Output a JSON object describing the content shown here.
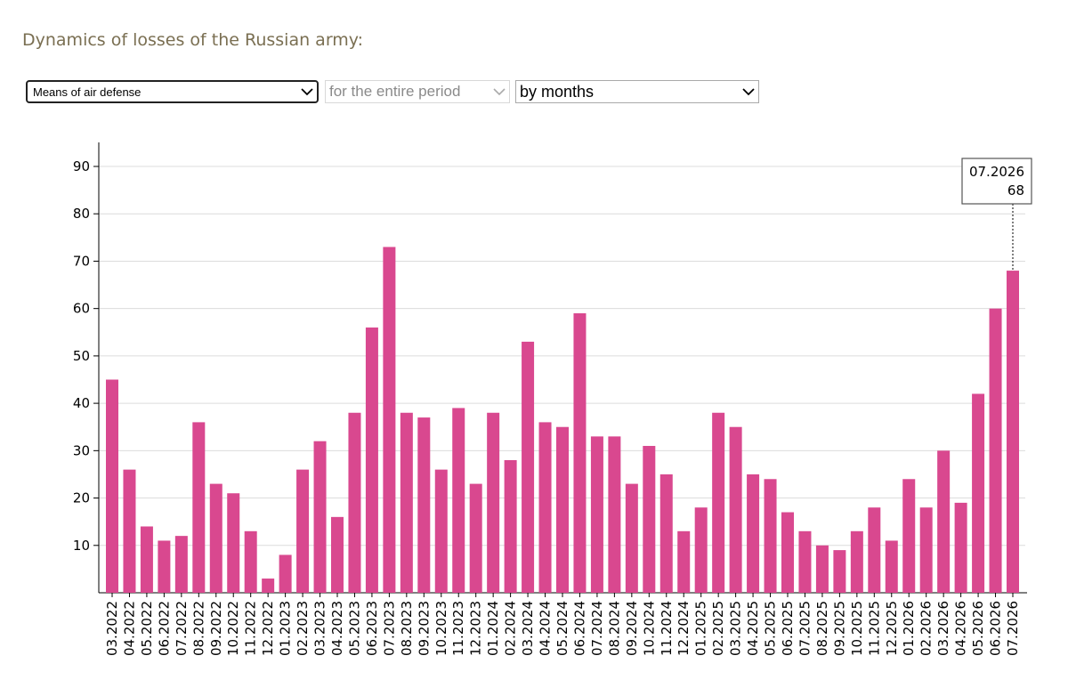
{
  "page": {
    "title": "Dynamics of losses of the Russian army:"
  },
  "filters": {
    "category": {
      "value": "Means of air defense",
      "icon": "chevron-down-icon"
    },
    "period": {
      "value": "for the entire period",
      "icon": "chevron-down-icon"
    },
    "granularity": {
      "value": "by months",
      "icon": "chevron-down-icon"
    }
  },
  "chart_data": {
    "type": "bar",
    "title": "",
    "xlabel": "",
    "ylabel": "",
    "ylim": [
      0,
      95
    ],
    "yticks": [
      10,
      20,
      30,
      40,
      50,
      60,
      70,
      80,
      90
    ],
    "grid": true,
    "bar_color": "#d9488f",
    "categories": [
      "03.2022",
      "04.2022",
      "05.2022",
      "06.2022",
      "07.2022",
      "08.2022",
      "09.2022",
      "10.2022",
      "11.2022",
      "12.2022",
      "01.2023",
      "02.2023",
      "03.2023",
      "04.2023",
      "05.2023",
      "06.2023",
      "07.2023",
      "08.2023",
      "09.2023",
      "10.2023",
      "11.2023",
      "12.2023",
      "01.2024",
      "02.2024",
      "03.2024",
      "04.2024",
      "05.2024",
      "06.2024",
      "07.2024",
      "08.2024",
      "09.2024",
      "10.2024",
      "11.2024",
      "12.2024",
      "01.2025",
      "02.2025",
      "03.2025",
      "04.2025",
      "05.2025",
      "06.2025",
      "07.2025",
      "08.2025",
      "09.2025",
      "10.2025",
      "11.2025",
      "12.2025",
      "01.2026",
      "02.2026",
      "03.2026",
      "04.2026",
      "05.2026",
      "06.2026",
      "07.2026"
    ],
    "values": [
      45,
      26,
      14,
      11,
      12,
      36,
      23,
      21,
      13,
      3,
      8,
      26,
      32,
      16,
      38,
      56,
      73,
      38,
      37,
      26,
      39,
      23,
      38,
      28,
      53,
      36,
      35,
      59,
      33,
      33,
      23,
      31,
      25,
      13,
      18,
      38,
      35,
      25,
      24,
      17,
      13,
      10,
      9,
      13,
      18,
      11,
      24,
      18,
      30,
      19,
      42,
      60,
      68
    ],
    "tooltip": {
      "label": "07.2026",
      "value": "68"
    }
  }
}
